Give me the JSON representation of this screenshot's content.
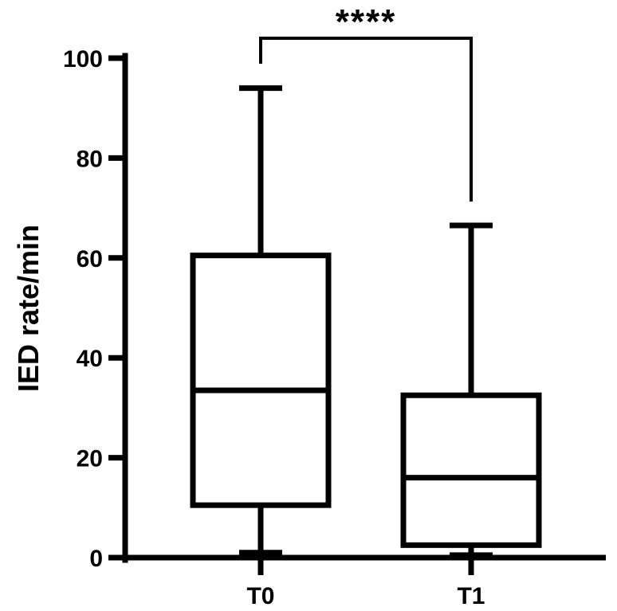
{
  "chart_data": {
    "type": "box",
    "ylabel": "IED rate/min",
    "xlabel": "",
    "ylim": [
      0,
      100
    ],
    "yticks": [
      0,
      20,
      40,
      60,
      80,
      100
    ],
    "categories": [
      "T0",
      "T1"
    ],
    "boxes": [
      {
        "category": "T0",
        "min": 1,
        "q1": 10.5,
        "median": 33.5,
        "q3": 60.5,
        "max": 94
      },
      {
        "category": "T1",
        "min": 0.5,
        "q1": 2.5,
        "median": 16,
        "q3": 32.5,
        "max": 66.5
      }
    ],
    "significance": {
      "from": "T0",
      "to": "T1",
      "label": "****"
    },
    "grid": false,
    "color": "#000000"
  }
}
